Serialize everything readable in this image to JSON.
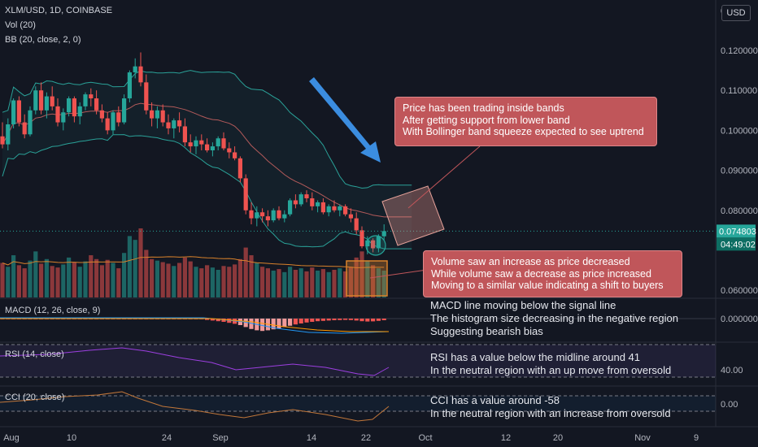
{
  "header": {
    "symbol_line": "XLM/USD, 1D, COINBASE",
    "volume_line": "Vol (20)",
    "bb_line": "BB (20, close, 2, 0)",
    "currency_button": "USD",
    "price_badge": "0.074803",
    "countdown_badge": "04:49:02"
  },
  "panes": {
    "macd_label": "MACD (12, 26, close, 9)",
    "rsi_label": "RSI (14, close)",
    "cci_label": "CCI (20, close)"
  },
  "callouts": {
    "price": [
      "Price has been trading inside bands",
      "After getting support from lower band",
      "With Bollinger band squeeze expected to see uptrend"
    ],
    "volume": [
      "Volume saw an increase as price decreased",
      "While volume saw a decrease as price increased",
      "Moving to a similar value indicating a shift to buyers"
    ]
  },
  "notes": {
    "macd": [
      "MACD line moving below the signal line",
      "The histogram size decreasing in the negative region",
      "Suggesting bearish bias"
    ],
    "rsi": [
      "RSI has a value below the midline around 41",
      "In the neutral region with an up move from oversold"
    ],
    "cci": [
      "CCI has a value around -58",
      "In the neutral region with an increase from oversold"
    ]
  },
  "colors": {
    "background": "#131722",
    "up": "#26a69a",
    "down": "#ef5350",
    "bb_bands": "#2aa198",
    "bb_basis": "#b35a5a",
    "rsi": "#9c3fe0",
    "cci": "#c2773a",
    "callout": "#c0565a",
    "arrow": "#3b8de0"
  },
  "chart_data": {
    "type": "candlestick",
    "symbol": "XLM/USD",
    "interval": "1D",
    "exchange": "COINBASE",
    "ylim": [
      0.055,
      0.13
    ],
    "y_ticks": [
      "0.120000",
      "0.110000",
      "0.100000",
      "0.090000",
      "0.080000",
      "0.060000"
    ],
    "top_tick": "0",
    "x_labels": [
      "Aug",
      "10",
      "24",
      "Sep",
      "14",
      "22",
      "Oct",
      "12",
      "20",
      "Nov",
      "9"
    ],
    "ohlc": [
      [
        0.0985,
        0.102,
        0.0955,
        0.0965
      ],
      [
        0.0965,
        0.103,
        0.095,
        0.1015
      ],
      [
        0.1015,
        0.108,
        0.1005,
        0.1075
      ],
      [
        0.1075,
        0.1085,
        0.101,
        0.102
      ],
      [
        0.102,
        0.104,
        0.098,
        0.099
      ],
      [
        0.099,
        0.106,
        0.0985,
        0.105
      ],
      [
        0.105,
        0.111,
        0.104,
        0.11
      ],
      [
        0.11,
        0.112,
        0.104,
        0.105
      ],
      [
        0.105,
        0.1095,
        0.103,
        0.1085
      ],
      [
        0.1085,
        0.111,
        0.105,
        0.106
      ],
      [
        0.106,
        0.108,
        0.101,
        0.102
      ],
      [
        0.102,
        0.1055,
        0.1,
        0.1045
      ],
      [
        0.1045,
        0.1085,
        0.1035,
        0.108
      ],
      [
        0.108,
        0.1085,
        0.102,
        0.1035
      ],
      [
        0.1035,
        0.107,
        0.1015,
        0.106
      ],
      [
        0.106,
        0.1095,
        0.105,
        0.109
      ],
      [
        0.109,
        0.1105,
        0.106,
        0.108
      ],
      [
        0.108,
        0.11,
        0.104,
        0.105
      ],
      [
        0.105,
        0.1065,
        0.102,
        0.103
      ],
      [
        0.103,
        0.1045,
        0.099,
        0.1
      ],
      [
        0.1,
        0.105,
        0.099,
        0.1045
      ],
      [
        0.1045,
        0.106,
        0.101,
        0.102
      ],
      [
        0.102,
        0.109,
        0.1015,
        0.108
      ],
      [
        0.108,
        0.115,
        0.107,
        0.1145
      ],
      [
        0.1145,
        0.118,
        0.113,
        0.116
      ],
      [
        0.116,
        0.1195,
        0.111,
        0.112
      ],
      [
        0.112,
        0.114,
        0.104,
        0.105
      ],
      [
        0.105,
        0.107,
        0.101,
        0.103
      ],
      [
        0.103,
        0.106,
        0.1005,
        0.105
      ],
      [
        0.105,
        0.1065,
        0.101,
        0.102
      ],
      [
        0.102,
        0.104,
        0.099,
        0.1005
      ],
      [
        0.1005,
        0.103,
        0.098,
        0.1025
      ],
      [
        0.1025,
        0.1045,
        0.0995,
        0.101
      ],
      [
        0.101,
        0.103,
        0.096,
        0.097
      ],
      [
        0.097,
        0.099,
        0.0945,
        0.096
      ],
      [
        0.096,
        0.0985,
        0.094,
        0.0975
      ],
      [
        0.0975,
        0.099,
        0.095,
        0.0965
      ],
      [
        0.0965,
        0.098,
        0.0945,
        0.095
      ],
      [
        0.095,
        0.097,
        0.0935,
        0.096
      ],
      [
        0.096,
        0.0985,
        0.095,
        0.098
      ],
      [
        0.098,
        0.0995,
        0.095,
        0.0955
      ],
      [
        0.0955,
        0.097,
        0.093,
        0.0945
      ],
      [
        0.0945,
        0.096,
        0.0925,
        0.093
      ],
      [
        0.093,
        0.0935,
        0.087,
        0.088
      ],
      [
        0.088,
        0.089,
        0.079,
        0.08
      ],
      [
        0.08,
        0.082,
        0.0765,
        0.078
      ],
      [
        0.078,
        0.081,
        0.076,
        0.0795
      ],
      [
        0.0795,
        0.0805,
        0.077,
        0.0785
      ],
      [
        0.0785,
        0.08,
        0.076,
        0.0775
      ],
      [
        0.0775,
        0.0805,
        0.077,
        0.08
      ],
      [
        0.08,
        0.081,
        0.0775,
        0.078
      ],
      [
        0.078,
        0.08,
        0.077,
        0.079
      ],
      [
        0.079,
        0.083,
        0.0785,
        0.0825
      ],
      [
        0.0825,
        0.084,
        0.0805,
        0.0815
      ],
      [
        0.0815,
        0.0845,
        0.081,
        0.084
      ],
      [
        0.084,
        0.085,
        0.082,
        0.083
      ],
      [
        0.083,
        0.0845,
        0.08,
        0.081
      ],
      [
        0.081,
        0.0825,
        0.0795,
        0.082
      ],
      [
        0.082,
        0.083,
        0.079,
        0.0795
      ],
      [
        0.0795,
        0.0815,
        0.0785,
        0.081
      ],
      [
        0.081,
        0.0825,
        0.0795,
        0.08
      ],
      [
        0.08,
        0.0815,
        0.0785,
        0.081
      ],
      [
        0.081,
        0.0815,
        0.0785,
        0.079
      ],
      [
        0.079,
        0.0805,
        0.077,
        0.078
      ],
      [
        0.078,
        0.0795,
        0.074,
        0.075
      ],
      [
        0.075,
        0.076,
        0.0705,
        0.071
      ],
      [
        0.071,
        0.0735,
        0.069,
        0.0725
      ],
      [
        0.0725,
        0.073,
        0.0695,
        0.0705
      ],
      [
        0.0705,
        0.074,
        0.0695,
        0.0735
      ],
      [
        0.0735,
        0.0765,
        0.0725,
        0.0748
      ]
    ],
    "volume": [
      45,
      40,
      55,
      42,
      38,
      48,
      60,
      44,
      50,
      41,
      39,
      43,
      52,
      46,
      40,
      47,
      55,
      50,
      42,
      49,
      45,
      38,
      58,
      80,
      75,
      90,
      62,
      50,
      48,
      46,
      44,
      41,
      45,
      52,
      47,
      40,
      38,
      42,
      39,
      36,
      41,
      40,
      43,
      50,
      65,
      55,
      45,
      40,
      38,
      35,
      37,
      33,
      40,
      36,
      38,
      34,
      39,
      35,
      37,
      33,
      36,
      38,
      34,
      40,
      52,
      60,
      48,
      42,
      38,
      35
    ],
    "macd_histogram": [
      0,
      0,
      0,
      0,
      0,
      0,
      0,
      0,
      0,
      0,
      0,
      0,
      0,
      0,
      0,
      0,
      0,
      0,
      0,
      0,
      0,
      0,
      0,
      0,
      0,
      0,
      0,
      0,
      0,
      0,
      0,
      0,
      0,
      0,
      0,
      0,
      -0.2,
      -0.4,
      -0.6,
      -0.8,
      -1.0,
      -1.3,
      -1.6,
      -2.0,
      -2.6,
      -3.2,
      -3.6,
      -3.8,
      -3.6,
      -3.3,
      -3.0,
      -2.6,
      -2.2,
      -1.8,
      -1.5,
      -1.2,
      -1.0,
      -0.8,
      -0.7,
      -0.6,
      -0.5,
      -0.45,
      -0.4,
      -0.45,
      -0.6,
      -0.8,
      -0.9,
      -0.85,
      -0.7,
      -0.5
    ],
    "rsi_bands": [
      70,
      40
    ],
    "rsi_value": 41,
    "rsi_tick": "40.00",
    "cci_value": -58,
    "cci_tick": "0.00",
    "x_day_labels_visible": true
  }
}
